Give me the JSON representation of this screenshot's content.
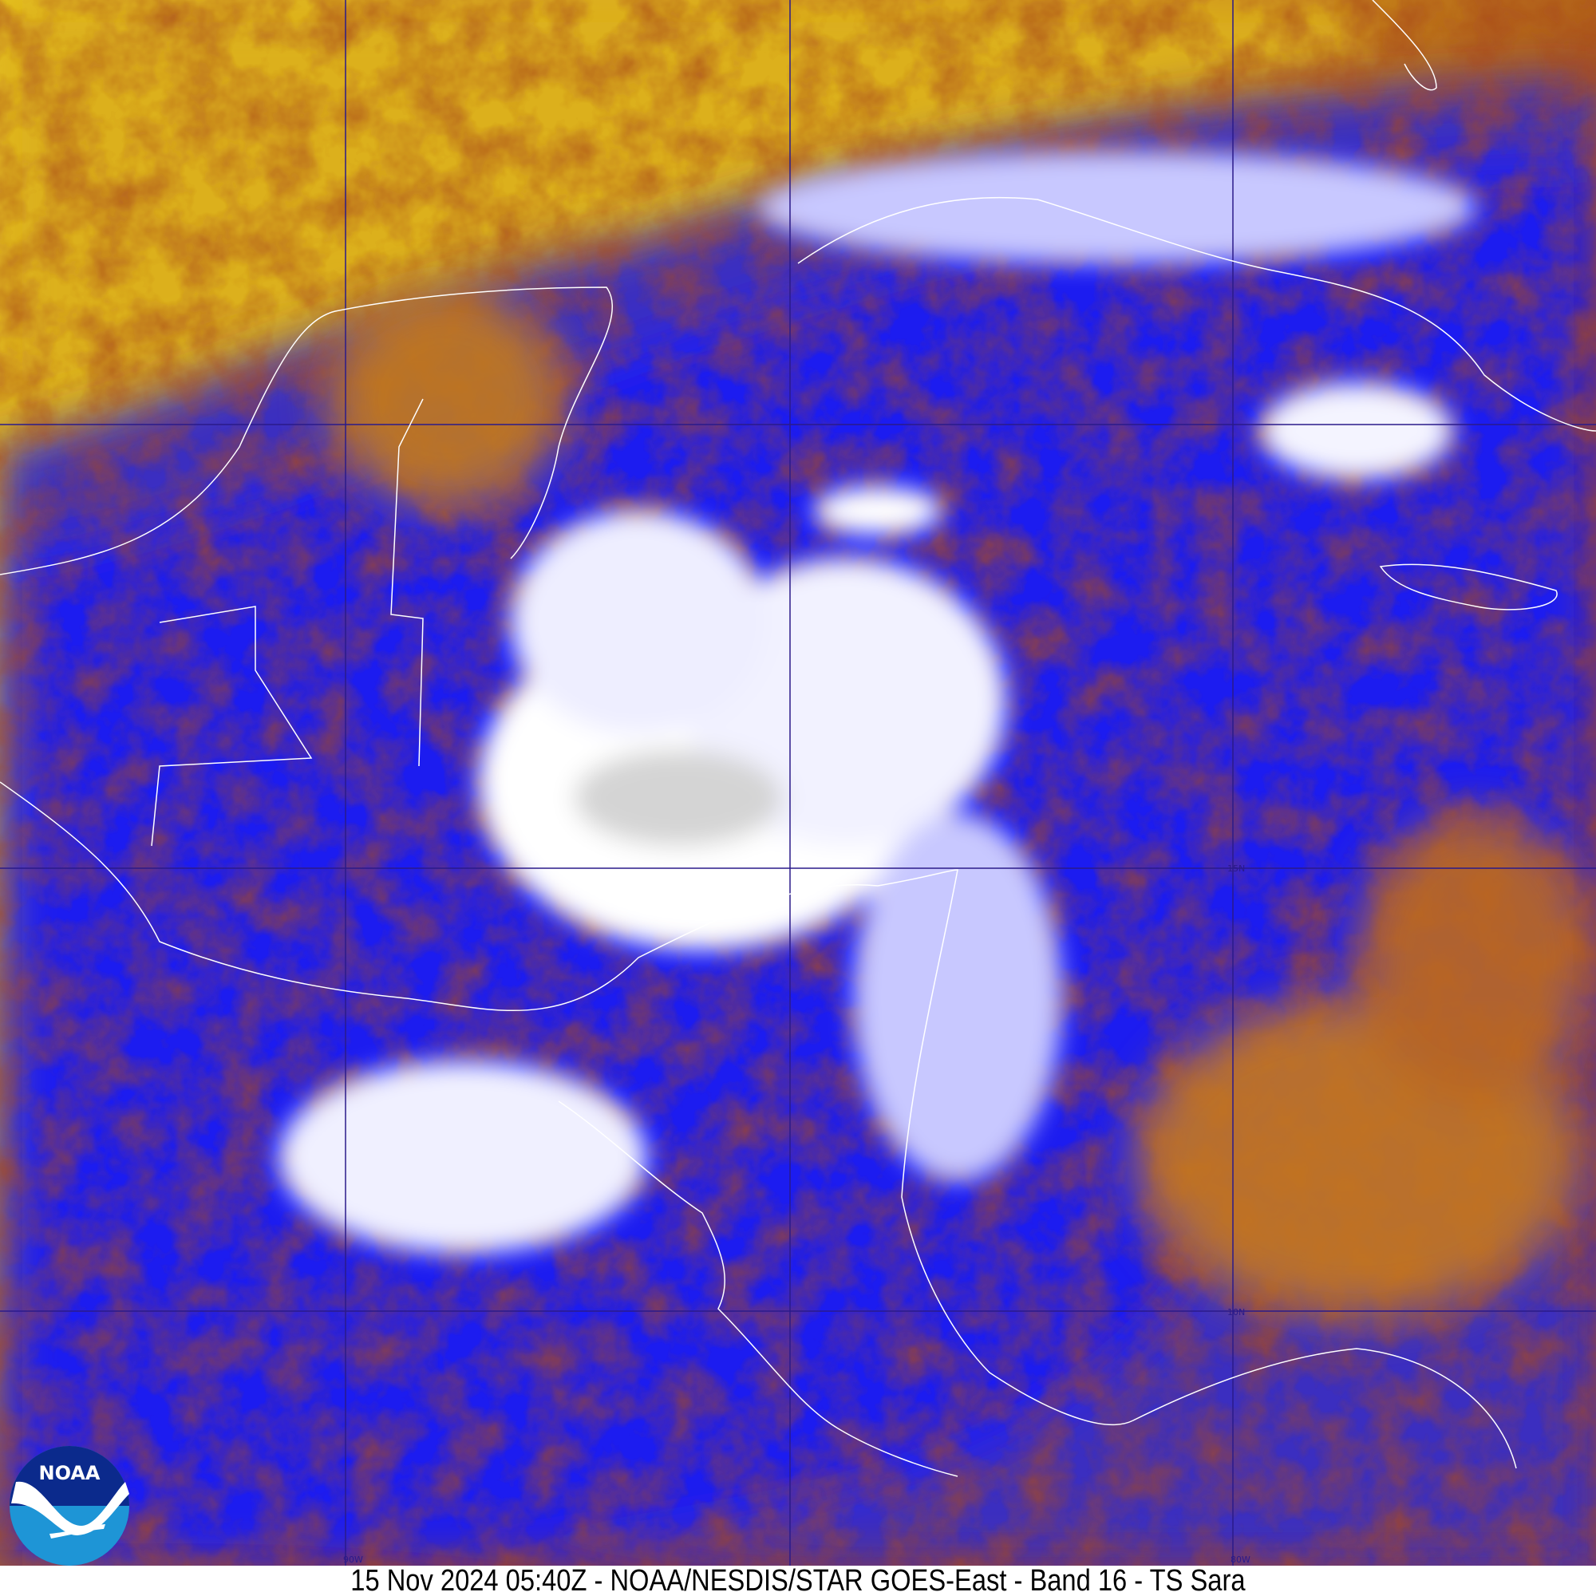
{
  "caption": "15 Nov 2024 05:40Z - NOAA/NESDIS/STAR GOES-East - Band 16 - TS Sara",
  "logo": {
    "text": "NOAA",
    "outer_color": "#0b2a8c",
    "inner_color": "#1e95d6"
  },
  "grid_labels": {
    "lat_15": "15N",
    "lat_10": "10N",
    "lon_90": "90W",
    "lon_80": "80W"
  },
  "colors": {
    "warm_clear": "#e2b020",
    "land_warm": "#b8551a",
    "cloud_mid": "#1a1aff",
    "cloud_cold": "#ffffff",
    "grid": "#2a1a8a",
    "coastline": "#ffffff"
  }
}
